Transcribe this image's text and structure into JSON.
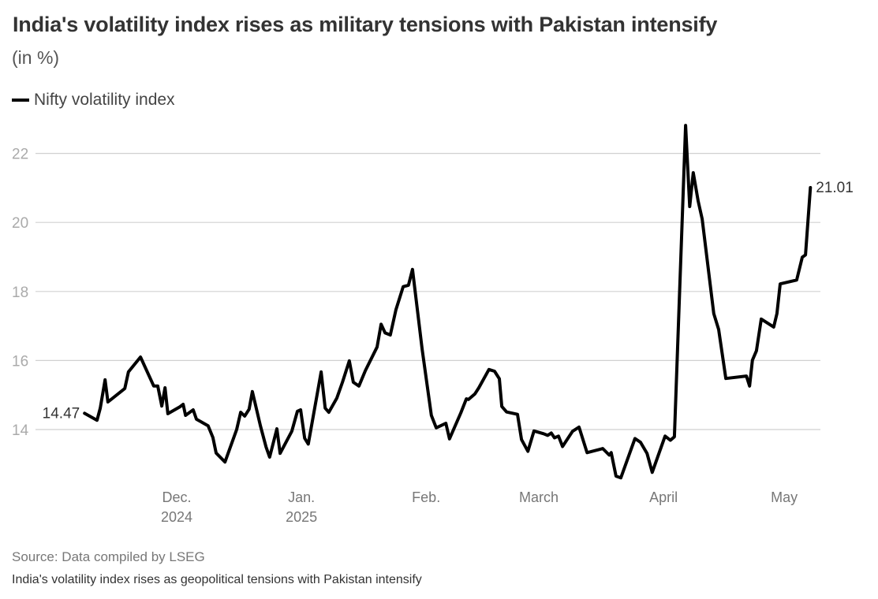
{
  "title": "India's volatility index rises as military tensions with Pakistan intensify",
  "subtitle": "(in %)",
  "source": "Source: Data compiled by LSEG",
  "caption": "India's volatility index rises as geopolitical tensions with Pakistan intensify",
  "chart_data": {
    "type": "line",
    "title": "India's volatility index rises as military tensions with Pakistan intensify",
    "ylabel": "(in %)",
    "xlabel": "",
    "x_units": "days since 2024-11-01",
    "ylim": [
      12.5,
      23
    ],
    "yticks": [
      14,
      16,
      18,
      20,
      22
    ],
    "grid": true,
    "legend": {
      "position": "top-left",
      "entries": [
        "Nifty volatility index"
      ]
    },
    "xticks": [
      {
        "day": 30,
        "label": "Dec.",
        "sub": "2024"
      },
      {
        "day": 61,
        "label": "Jan.",
        "sub": "2025"
      },
      {
        "day": 92,
        "label": "Feb.",
        "sub": ""
      },
      {
        "day": 120,
        "label": "March",
        "sub": ""
      },
      {
        "day": 151,
        "label": "April",
        "sub": ""
      },
      {
        "day": 181,
        "label": "May",
        "sub": ""
      }
    ],
    "annotations": [
      {
        "label": "14.47",
        "at": "start"
      },
      {
        "label": "21.01",
        "at": "end"
      }
    ],
    "series": [
      {
        "name": "Nifty volatility index",
        "color": "#000000",
        "x": [
          7.1,
          10.2,
          11.0,
          12.2,
          12.9,
          17.1,
          18.0,
          21.0,
          24.3,
          25.3,
          26.3,
          27.1,
          27.8,
          30.8,
          31.6,
          32.2,
          34.1,
          34.9,
          37.8,
          39.0,
          39.8,
          42.0,
          44.9,
          45.9,
          46.9,
          48.0,
          48.8,
          50.8,
          52.2,
          53.1,
          54.9,
          55.7,
          58.6,
          60.0,
          60.8,
          61.8,
          62.7,
          65.9,
          66.9,
          67.8,
          69.8,
          71.2,
          72.9,
          73.9,
          75.3,
          76.9,
          79.8,
          80.8,
          81.8,
          83.1,
          84.5,
          86.3,
          87.6,
          88.6,
          91.0,
          93.3,
          94.5,
          96.9,
          97.8,
          100.6,
          102.0,
          102.5,
          104.1,
          105.1,
          107.6,
          109.0,
          110.2,
          110.8,
          112.0,
          114.7,
          115.7,
          117.3,
          118.8,
          121.2,
          122.2,
          123.1,
          123.9,
          124.9,
          125.9,
          128.4,
          130.0,
          132.0,
          135.9,
          137.5,
          138.0,
          139.2,
          140.4,
          143.9,
          145.3,
          146.9,
          148.2,
          151.4,
          152.7,
          153.7,
          156.5,
          157.5,
          158.4,
          159.6,
          160.6,
          163.5,
          164.7,
          166.5,
          171.6,
          172.4,
          173.1,
          174.1,
          175.3,
          178.4,
          179.2,
          180.0,
          184.1,
          185.5,
          186.3,
          187.5
        ],
        "values": [
          14.47,
          14.27,
          14.62,
          15.44,
          14.8,
          15.19,
          15.67,
          16.1,
          15.26,
          15.26,
          14.68,
          15.21,
          14.46,
          14.66,
          14.73,
          14.41,
          14.57,
          14.3,
          14.11,
          13.77,
          13.32,
          13.06,
          14.0,
          14.5,
          14.39,
          14.59,
          15.1,
          14.11,
          13.5,
          13.2,
          14.02,
          13.31,
          13.95,
          14.53,
          14.57,
          13.75,
          13.58,
          15.67,
          14.62,
          14.5,
          14.91,
          15.37,
          15.99,
          15.37,
          15.26,
          15.71,
          16.39,
          17.05,
          16.8,
          16.74,
          17.47,
          18.14,
          18.18,
          18.64,
          16.33,
          14.41,
          14.05,
          14.18,
          13.73,
          14.48,
          14.89,
          14.87,
          15.03,
          15.21,
          15.74,
          15.69,
          15.47,
          14.67,
          14.51,
          14.44,
          13.71,
          13.37,
          13.96,
          13.88,
          13.83,
          13.9,
          13.76,
          13.81,
          13.51,
          13.95,
          14.07,
          13.33,
          13.45,
          13.26,
          13.33,
          12.65,
          12.6,
          13.74,
          13.63,
          13.31,
          12.76,
          13.81,
          13.69,
          13.79,
          22.81,
          20.46,
          21.44,
          20.62,
          20.1,
          17.36,
          16.9,
          15.48,
          15.55,
          15.26,
          16.01,
          16.28,
          17.2,
          16.97,
          17.36,
          18.22,
          18.33,
          18.99,
          19.06,
          21.01
        ]
      }
    ]
  }
}
